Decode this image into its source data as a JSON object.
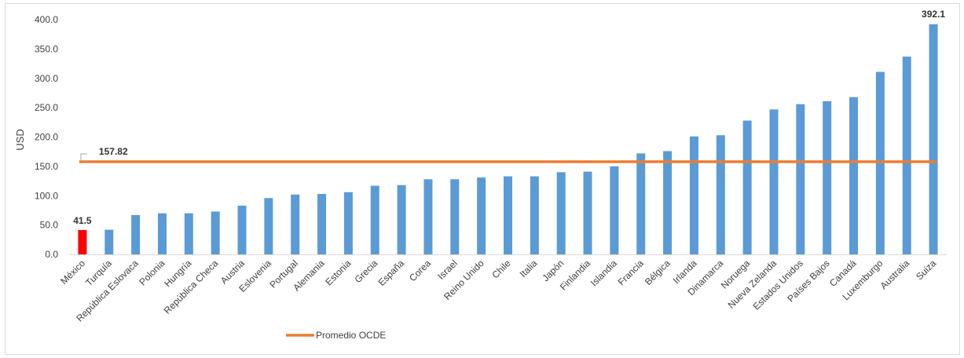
{
  "chart_data": {
    "type": "bar",
    "title": "",
    "xlabel": "",
    "ylabel": "USD",
    "ylim": [
      0,
      400
    ],
    "yticks": [
      "0.0",
      "50.0",
      "100.0",
      "150.0",
      "200.0",
      "250.0",
      "300.0",
      "350.0",
      "400.0"
    ],
    "grid": false,
    "categories": [
      "México",
      "Turquía",
      "República Eslovaca",
      "Polonia",
      "Hungría",
      "República Checa",
      "Austria",
      "Eslovenia",
      "Portugal",
      "Alemania",
      "Estonia",
      "Grecia",
      "España",
      "Corea",
      "Israel",
      "Reino Unido",
      "Chile",
      "Italia",
      "Japón",
      "Finlandia",
      "Islandia",
      "Francia",
      "Bélgica",
      "Irlanda",
      "Dinamarca",
      "Noruega",
      "Nueva Zelanda",
      "Estados Unidos",
      "Países Bajos",
      "Canadá",
      "Luxemburgo",
      "Australia",
      "Suiza"
    ],
    "values": [
      41.5,
      42,
      67,
      70,
      70,
      73,
      83,
      96,
      102,
      103,
      106,
      117,
      118,
      128,
      128,
      131,
      133,
      133,
      140,
      141,
      150,
      172,
      176,
      201,
      203,
      228,
      247,
      256,
      261,
      268,
      311,
      337,
      392.1
    ],
    "bar_color": "#5b9bd5",
    "highlight": {
      "category": "México",
      "color": "#ff0000",
      "label": "41.5"
    },
    "max_label": {
      "category": "Suiza",
      "label": "392.1"
    },
    "reference_line": {
      "name": "Promedio OCDE",
      "value": 157.82,
      "label": "157.82",
      "color": "#ed7d31"
    },
    "legend": {
      "position": "bottom-left",
      "entries": [
        "Promedio OCDE"
      ]
    }
  }
}
